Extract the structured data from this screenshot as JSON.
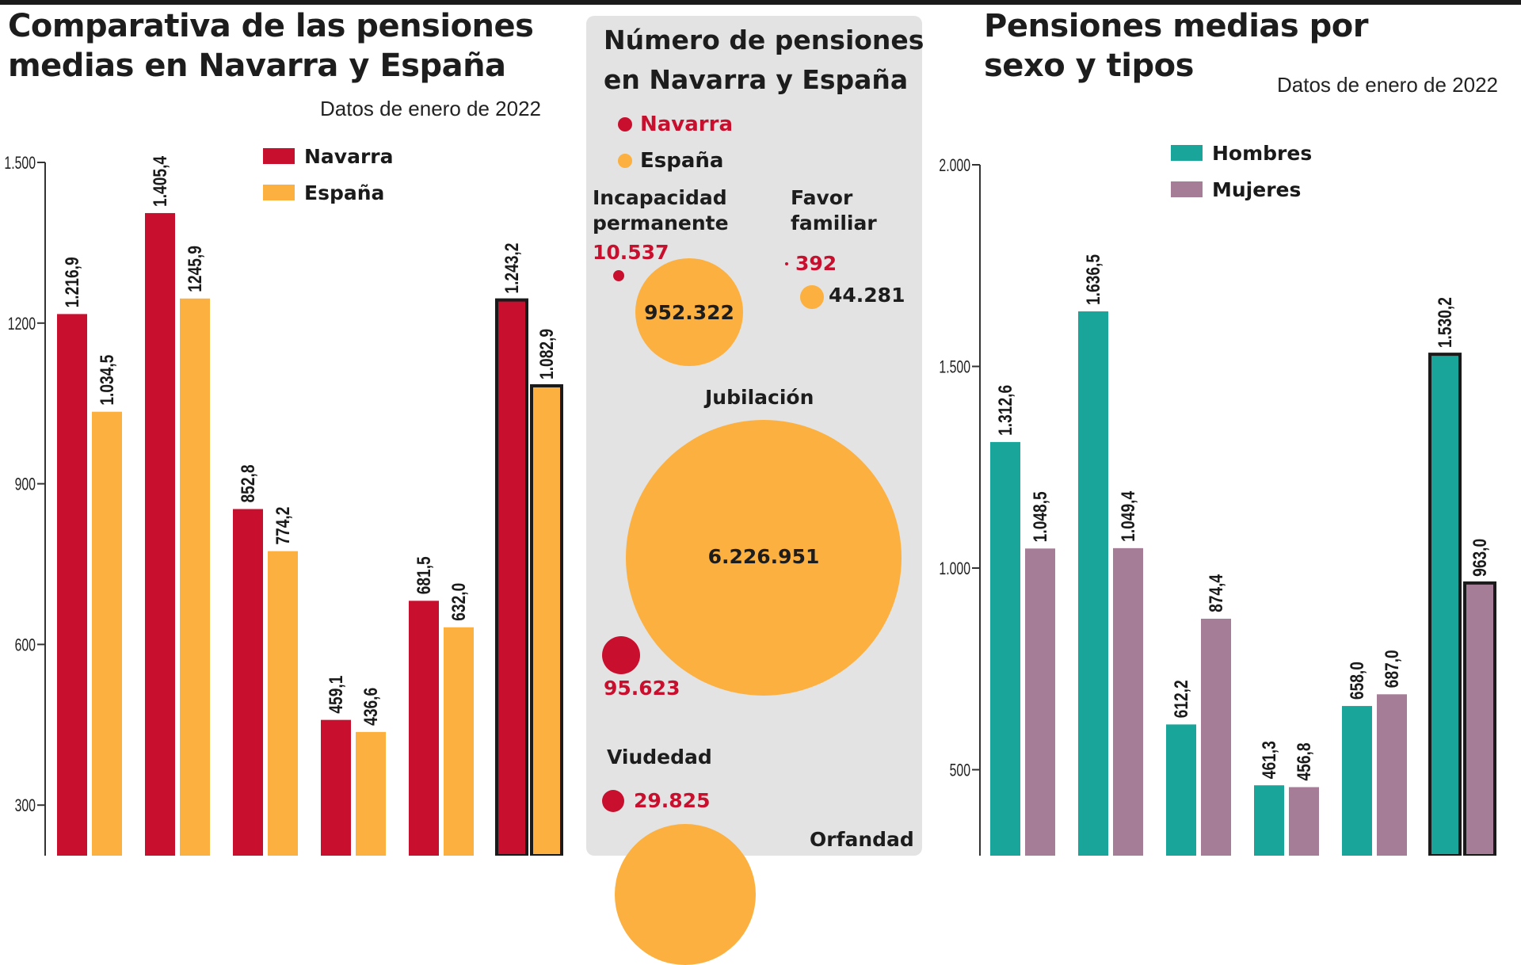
{
  "colors": {
    "navarra": "#c8102e",
    "espana": "#fbb040",
    "hombres": "#1aa59a",
    "mujeres": "#a67d96"
  },
  "left": {
    "title_line1": "Comparativa de las pensiones",
    "title_line2": "medias en Navarra y España",
    "subtitle": "Datos de enero de 2022"
  },
  "center": {
    "title_line1": "Número de pensiones",
    "title_line2": "en Navarra y España",
    "legend_navarra": "Navarra",
    "legend_espana": "España",
    "incapacidad": {
      "label_line1": "Incapacidad",
      "label_line2": "permanente",
      "navarra": "10.537",
      "espana": "952.322"
    },
    "favor": {
      "label_line1": "Favor",
      "label_line2": "familiar",
      "navarra": "392",
      "espana": "44.281"
    },
    "jubilacion": {
      "label": "Jubilación",
      "navarra": "95.623",
      "espana": "6.226.951"
    },
    "viudedad": {
      "label": "Viudedad",
      "navarra": "29.825"
    },
    "orfandad": {
      "label": "Orfandad"
    }
  },
  "right": {
    "title_line1": "Pensiones medias por",
    "title_line2": "sexo y tipos",
    "subtitle": "Datos de enero de 2022"
  },
  "chart_data": [
    {
      "type": "bar",
      "title": "Comparativa de las pensiones medias en Navarra y España",
      "subtitle": "Datos de enero de 2022",
      "ylim": [
        0,
        1500
      ],
      "yticks": [
        300,
        600,
        900,
        1200,
        1500
      ],
      "ytick_labels": [
        "300",
        "600",
        "900",
        "1200",
        "1.500"
      ],
      "legend_position": "top",
      "series": [
        {
          "name": "Navarra",
          "color": "#c8102e",
          "values": [
            1216.9,
            1405.4,
            852.8,
            459.1,
            681.5,
            1243.2
          ],
          "labels": [
            "1.216,9",
            "1.405,4",
            "852,8",
            "459,1",
            "681,5",
            "1.243,2"
          ]
        },
        {
          "name": "España",
          "color": "#fbb040",
          "values": [
            1034.5,
            1245.9,
            774.2,
            436.6,
            632.0,
            1082.9
          ],
          "labels": [
            "1.034,5",
            "1245,9",
            "774,2",
            "436,6",
            "632,0",
            "1.082,9"
          ]
        }
      ],
      "highlight_last_group": true
    },
    {
      "type": "bar",
      "title": "Número de pensiones en Navarra y España",
      "note": "bubble chart",
      "categories": [
        "Incapacidad permanente",
        "Favor familiar",
        "Jubilación",
        "Viudedad",
        "Orfandad"
      ],
      "series": [
        {
          "name": "Navarra",
          "values": [
            10537,
            392,
            95623,
            29825,
            null
          ]
        },
        {
          "name": "España",
          "values": [
            952322,
            44281,
            6226951,
            null,
            null
          ]
        }
      ]
    },
    {
      "type": "bar",
      "title": "Pensiones medias por sexo y tipos",
      "subtitle": "Datos de enero de 2022",
      "ylim": [
        0,
        2000
      ],
      "yticks": [
        500,
        1000,
        1500,
        2000
      ],
      "ytick_labels": [
        "500",
        "1.000",
        "1.500",
        "2.000"
      ],
      "legend_position": "top",
      "series": [
        {
          "name": "Hombres",
          "color": "#1aa59a",
          "values": [
            1312.6,
            1636.5,
            612.2,
            461.3,
            658.0,
            1530.2
          ],
          "labels": [
            "1.312,6",
            "1.636,5",
            "612,2",
            "461,3",
            "658,0",
            "1.530,2"
          ]
        },
        {
          "name": "Mujeres",
          "color": "#a67d96",
          "values": [
            1048.5,
            1049.4,
            874.4,
            456.8,
            687.0,
            963.0
          ],
          "labels": [
            "1.048,5",
            "1.049,4",
            "874,4",
            "456,8",
            "687,0",
            "963,0"
          ]
        }
      ],
      "highlight_last_group": true
    }
  ]
}
